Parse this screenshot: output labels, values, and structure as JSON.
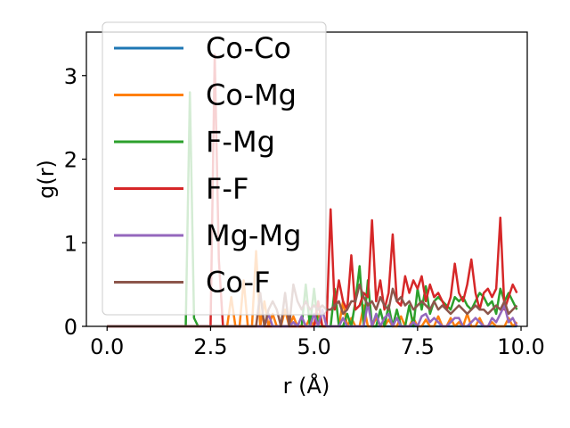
{
  "chart_data": {
    "type": "line",
    "title": "",
    "xlabel": "r (Å)",
    "ylabel": "g(r)",
    "xlim": [
      -0.5,
      10.15
    ],
    "ylim": [
      0,
      3.52
    ],
    "xticks": [
      0.0,
      2.5,
      5.0,
      7.5,
      10.0
    ],
    "xtick_labels": [
      "0.0",
      "2.5",
      "5.0",
      "7.5",
      "10.0"
    ],
    "yticks": [
      0,
      1,
      2,
      3
    ],
    "ytick_labels": [
      "0",
      "1",
      "2",
      "3"
    ],
    "grid": false,
    "legend_position": "upper-left",
    "x": [
      0.0,
      0.1,
      0.2,
      0.3,
      0.4,
      0.5,
      0.6,
      0.7,
      0.8,
      0.9,
      1.0,
      1.1,
      1.2,
      1.3,
      1.4,
      1.5,
      1.6,
      1.7,
      1.8,
      1.9,
      2.0,
      2.1,
      2.2,
      2.3,
      2.4,
      2.5,
      2.6,
      2.7,
      2.8,
      2.9,
      3.0,
      3.1,
      3.2,
      3.3,
      3.4,
      3.5,
      3.6,
      3.7,
      3.8,
      3.9,
      4.0,
      4.1,
      4.2,
      4.3,
      4.4,
      4.5,
      4.6,
      4.7,
      4.8,
      4.9,
      5.0,
      5.1,
      5.2,
      5.3,
      5.4,
      5.5,
      5.6,
      5.7,
      5.8,
      5.9,
      6.0,
      6.1,
      6.2,
      6.3,
      6.4,
      6.5,
      6.6,
      6.7,
      6.8,
      6.9,
      7.0,
      7.1,
      7.2,
      7.3,
      7.4,
      7.5,
      7.6,
      7.7,
      7.8,
      7.9,
      8.0,
      8.1,
      8.2,
      8.3,
      8.4,
      8.5,
      8.6,
      8.7,
      8.8,
      8.9,
      9.0,
      9.1,
      9.2,
      9.3,
      9.4,
      9.5,
      9.6,
      9.7,
      9.8,
      9.9
    ],
    "series": [
      {
        "name": "Co-Co",
        "color": "#1f77b4",
        "values": [
          0,
          0,
          0,
          0,
          0,
          0,
          0,
          0,
          0,
          0,
          0,
          0,
          0,
          0,
          0,
          0,
          0,
          0,
          0,
          0,
          0,
          0,
          0,
          0,
          0,
          0,
          0,
          0,
          0,
          0,
          0,
          0,
          0,
          0,
          0,
          0,
          0,
          0,
          0,
          0,
          0,
          0,
          0,
          0,
          0,
          0,
          0,
          0,
          0,
          0,
          0,
          0,
          0,
          0,
          0,
          0,
          0,
          0,
          0,
          0,
          0,
          0,
          0,
          0,
          0,
          0,
          0,
          0,
          0,
          0,
          0,
          0,
          0,
          0,
          0,
          0,
          0,
          0,
          0,
          0,
          0,
          0,
          0,
          0,
          0,
          0,
          0,
          0,
          0,
          0,
          0,
          0,
          0,
          0,
          0,
          0,
          0,
          0,
          0,
          0
        ]
      },
      {
        "name": "Co-Mg",
        "color": "#ff7f0e",
        "values": [
          0,
          0,
          0,
          0,
          0,
          0,
          0,
          0,
          0,
          0,
          0,
          0,
          0,
          0,
          0,
          0,
          0,
          0,
          0,
          0,
          0,
          0,
          0,
          0,
          0,
          0,
          0,
          0,
          0,
          0,
          0.35,
          0,
          0,
          0.55,
          0,
          0,
          0.9,
          0,
          0.3,
          0,
          0.15,
          0,
          0,
          0.2,
          0,
          0.12,
          0,
          0,
          0,
          0.1,
          0,
          0.15,
          0,
          0,
          0,
          0,
          0,
          0.3,
          0,
          0.1,
          0,
          0,
          0.25,
          0,
          0,
          0.1,
          0,
          0,
          0.08,
          0,
          0,
          0.12,
          0,
          0,
          0.1,
          0,
          0,
          0.08,
          0,
          0,
          0.12,
          0,
          0,
          0.1,
          0,
          0.05,
          0,
          0.15,
          0,
          0,
          0.1,
          0,
          0,
          0.05,
          0,
          0,
          0,
          0.1,
          0,
          0.05
        ]
      },
      {
        "name": "F-Mg",
        "color": "#2ca02c",
        "values": [
          0,
          0,
          0,
          0,
          0,
          0,
          0,
          0,
          0,
          0,
          0,
          0,
          0,
          0,
          0,
          0,
          0,
          0,
          0,
          0,
          2.8,
          0.1,
          0,
          0,
          0,
          0,
          0,
          0,
          0,
          0,
          0,
          0,
          0,
          0,
          0,
          0,
          0,
          0,
          0,
          0,
          0,
          0,
          0,
          0,
          0,
          0,
          0,
          0,
          0.5,
          0,
          0.45,
          0,
          0,
          0,
          0,
          0.45,
          0,
          0,
          0.15,
          0,
          0.3,
          0.72,
          0,
          0.55,
          0,
          0,
          0.2,
          0,
          0.25,
          0,
          0.2,
          0,
          0,
          0.25,
          0,
          0.45,
          0.2,
          0.48,
          0.15,
          0.3,
          0.35,
          0.3,
          0.25,
          0.2,
          0.35,
          0.3,
          0.35,
          0.25,
          0.2,
          0.3,
          0.4,
          0.35,
          0.25,
          0.3,
          0.15,
          0.45,
          0.3,
          0.4,
          0.3,
          0.2
        ]
      },
      {
        "name": "F-F",
        "color": "#d62728",
        "values": [
          0,
          0,
          0,
          0,
          0,
          0,
          0,
          0,
          0,
          0,
          0,
          0,
          0,
          0,
          0,
          0,
          0,
          0,
          0,
          0,
          0,
          0,
          0,
          0,
          0,
          0,
          3.25,
          0.8,
          0,
          0,
          0,
          0,
          0,
          0,
          0,
          0,
          0,
          0,
          0,
          0,
          0,
          0,
          0,
          0,
          0,
          0,
          0,
          0,
          0,
          0,
          0,
          0.3,
          0,
          0,
          1.4,
          0.2,
          0.55,
          0.3,
          0.2,
          0.85,
          0.2,
          0.25,
          0.4,
          0.35,
          1.27,
          0.3,
          0.55,
          0.2,
          0.4,
          1.1,
          0.3,
          0.25,
          0.6,
          0.4,
          0.55,
          0.45,
          0.6,
          0.3,
          0.5,
          0.35,
          0.4,
          0.3,
          0.2,
          0.35,
          0.75,
          0.4,
          0.3,
          0.5,
          0.8,
          0.4,
          0.2,
          0.4,
          0.45,
          0.35,
          0.45,
          1.3,
          0.2,
          0.35,
          0.5,
          0.4
        ]
      },
      {
        "name": "Mg-Mg",
        "color": "#9467bd",
        "values": [
          0,
          0,
          0,
          0,
          0,
          0,
          0,
          0,
          0,
          0,
          0,
          0,
          0,
          0,
          0,
          0,
          0,
          0,
          0,
          0,
          0,
          0,
          0,
          0,
          0,
          0,
          0,
          0,
          0,
          0,
          0,
          0,
          0,
          0,
          0,
          0,
          0,
          0,
          0,
          0.15,
          0,
          0,
          0,
          0,
          0,
          0.05,
          0,
          0.12,
          0,
          0,
          0.15,
          0,
          0.2,
          0,
          0,
          0,
          0,
          0.1,
          0,
          0,
          0,
          0,
          0,
          0.28,
          0,
          0.15,
          0,
          0.1,
          0.15,
          0,
          0.1,
          0,
          0,
          0,
          0.05,
          0,
          0.12,
          0.15,
          0.05,
          0.1,
          0.05,
          0,
          0,
          0.05,
          0.1,
          0.1,
          0,
          0,
          0.05,
          0.1,
          0.05,
          0,
          0,
          0.1,
          0.05,
          0.15,
          0.25,
          0.05,
          0.1,
          0
        ]
      },
      {
        "name": "Co-F",
        "color": "#8c564b",
        "values": [
          0,
          0,
          0,
          0,
          0,
          0,
          0,
          0,
          0,
          0,
          0,
          0,
          0,
          0,
          0,
          0,
          0,
          0,
          0,
          0,
          0,
          0,
          0,
          0,
          0,
          0,
          0,
          0,
          0,
          0,
          0,
          0,
          0,
          0,
          0,
          0,
          0,
          0.4,
          0,
          0.2,
          0.3,
          0.2,
          0,
          0.4,
          0,
          0.5,
          0.3,
          0.2,
          0.3,
          0.2,
          0.25,
          0.2,
          0.25,
          0.2,
          0.2,
          0.25,
          0.3,
          0.15,
          0.2,
          0.3,
          0.3,
          0.5,
          0.35,
          0.25,
          0.3,
          0.2,
          0.35,
          0.25,
          0.2,
          0.45,
          0.3,
          0.35,
          0.25,
          0.3,
          0.2,
          0.25,
          0.3,
          0.25,
          0.2,
          0.3,
          0.2,
          0.25,
          0.2,
          0.15,
          0.2,
          0.25,
          0.2,
          0.15,
          0.2,
          0.25,
          0.2,
          0.2,
          0.15,
          0.2,
          0.25,
          0.2,
          0.3,
          0.15,
          0.2,
          0.25
        ]
      }
    ]
  }
}
